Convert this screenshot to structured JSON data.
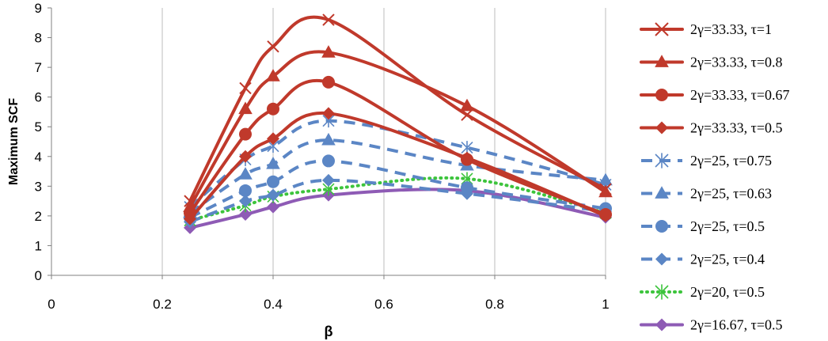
{
  "chart_data": {
    "type": "line",
    "title": "",
    "xlabel": "β",
    "ylabel": "Maximum SCF",
    "xlim": [
      0,
      1
    ],
    "ylim": [
      0,
      9
    ],
    "xticks": [
      0,
      0.2,
      0.4,
      0.6,
      0.8,
      1
    ],
    "yticks": [
      0,
      1,
      2,
      3,
      4,
      5,
      6,
      7,
      8,
      9
    ],
    "grid": "vertical",
    "legend_position": "right",
    "x": [
      0.25,
      0.35,
      0.4,
      0.5,
      0.75,
      1
    ],
    "series": [
      {
        "name": "2γ=33.33, τ=1",
        "values": [
          2.5,
          6.3,
          7.7,
          8.6,
          5.4,
          2.9
        ],
        "color": "#C0392B",
        "marker": "x",
        "dash": "solid"
      },
      {
        "name": "2γ=33.33, τ=0.8",
        "values": [
          2.3,
          5.6,
          6.7,
          7.5,
          5.7,
          2.8
        ],
        "color": "#C0392B",
        "marker": "triangle",
        "dash": "solid"
      },
      {
        "name": "2γ=33.33, τ=0.67",
        "values": [
          2.1,
          4.75,
          5.6,
          6.5,
          3.9,
          2.05
        ],
        "color": "#C0392B",
        "marker": "circle",
        "dash": "solid"
      },
      {
        "name": "2γ=33.33, τ=0.5",
        "values": [
          1.9,
          4.0,
          4.6,
          5.45,
          3.95,
          2.0
        ],
        "color": "#C0392B",
        "marker": "diamond",
        "dash": "solid"
      },
      {
        "name": "2γ=25, τ=0.75",
        "values": [
          2.3,
          3.9,
          4.35,
          5.2,
          4.3,
          3.05
        ],
        "color": "#5B86C5",
        "marker": "asterisk",
        "dash": "dashed"
      },
      {
        "name": "2γ=25, τ=0.63",
        "values": [
          2.1,
          3.4,
          3.75,
          4.55,
          3.7,
          3.2
        ],
        "color": "#5B86C5",
        "marker": "triangle",
        "dash": "dashed"
      },
      {
        "name": "2γ=25, τ=0.5",
        "values": [
          1.95,
          2.85,
          3.15,
          3.85,
          2.95,
          2.25
        ],
        "color": "#5B86C5",
        "marker": "circle",
        "dash": "dashed"
      },
      {
        "name": "2γ=25, τ=0.4",
        "values": [
          1.8,
          2.5,
          2.7,
          3.2,
          2.75,
          2.15
        ],
        "color": "#5B86C5",
        "marker": "diamond",
        "dash": "dashed"
      },
      {
        "name": "2γ=20, τ=0.5",
        "values": [
          1.85,
          2.35,
          2.65,
          2.9,
          3.25,
          2.1
        ],
        "color": "#3CC43C",
        "marker": "asterisk",
        "dash": "dotted"
      },
      {
        "name": "2γ=16.67, τ=0.5",
        "values": [
          1.6,
          2.05,
          2.3,
          2.7,
          2.85,
          1.95
        ],
        "color": "#8E5BB5",
        "marker": "diamond",
        "dash": "solid"
      }
    ]
  }
}
